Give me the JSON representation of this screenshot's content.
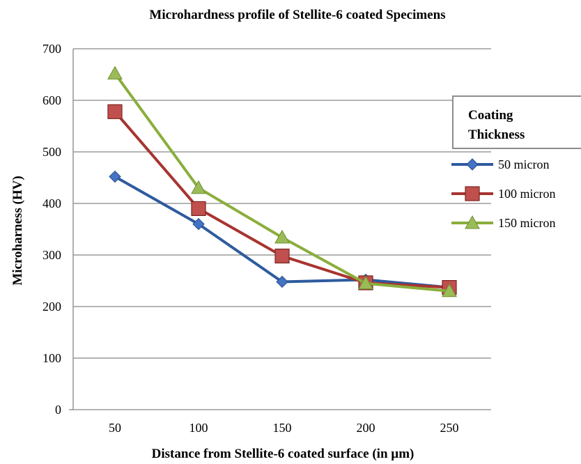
{
  "chart_data": {
    "type": "line",
    "title": "Microhardness profile of Stellite-6 coated Specimens",
    "xlabel": "Distance from Stellite-6 coated surface (in µm)",
    "ylabel": "Microharness (HV)",
    "categories": [
      "50",
      "100",
      "150",
      "200",
      "250"
    ],
    "ylim": [
      0,
      700
    ],
    "yticks": [
      0,
      100,
      200,
      300,
      400,
      500,
      600,
      700
    ],
    "grid": true,
    "legend_position": "right",
    "legend_title": "Coating Thickness",
    "series": [
      {
        "name": "50 micron",
        "color": "#2e5b9e",
        "marker": "diamond",
        "values": [
          452,
          360,
          248,
          252,
          237
        ]
      },
      {
        "name": "100 micron",
        "color": "#a83430",
        "marker": "square",
        "values": [
          578,
          390,
          298,
          246,
          237
        ]
      },
      {
        "name": "150 micron",
        "color": "#8aae3c",
        "marker": "triangle",
        "values": [
          652,
          430,
          334,
          245,
          230
        ]
      }
    ]
  }
}
